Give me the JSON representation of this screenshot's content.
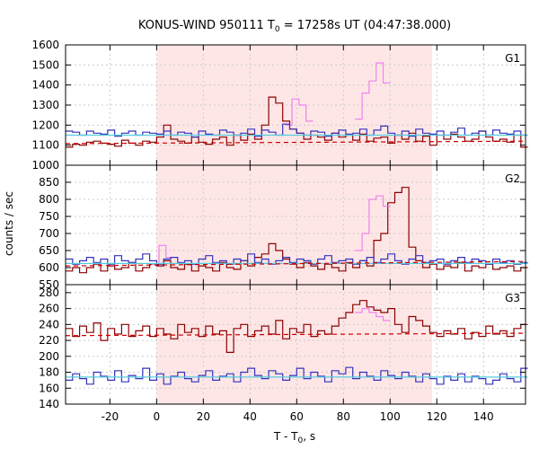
{
  "chart_data": [
    {
      "type": "line",
      "panel": "G1",
      "title": "KONUS-WIND 950111 T0 = 17258s UT (04:47:38.000)",
      "title_parts": {
        "pre": "KONUS-WIND 950111 T",
        "sub": "0",
        "post": " = 17258s UT (04:47:38.000)"
      },
      "xlabel": "T - T0, s",
      "xlabel_parts": {
        "pre": "T - T",
        "sub": "0",
        "post": ", s"
      },
      "ylabel": "counts / sec",
      "xlim": [
        -39,
        158
      ],
      "ylim": [
        1000,
        1600
      ],
      "yticks": [
        1000,
        1100,
        1200,
        1300,
        1400,
        1500,
        1600
      ],
      "xticks": [
        -20,
        0,
        20,
        40,
        60,
        80,
        100,
        120,
        140
      ],
      "shaded_interval": [
        0,
        118
      ],
      "bin_width": 3,
      "series": [
        {
          "color": "#8b0000",
          "start": -39,
          "values": [
            1090,
            1105,
            1100,
            1115,
            1120,
            1110,
            1105,
            1095,
            1125,
            1110,
            1100,
            1120,
            1115,
            1140,
            1200,
            1130,
            1120,
            1110,
            1140,
            1115,
            1105,
            1130,
            1140,
            1100,
            1150,
            1125,
            1155,
            1130,
            1200,
            1340,
            1310,
            1220,
            1180,
            1160,
            1130,
            1150,
            1140,
            1125,
            1160,
            1140,
            1150,
            1125,
            1155,
            1120,
            1135,
            1140,
            1110,
            1150,
            1130,
            1160,
            1120,
            1145,
            1100,
            1150,
            1130,
            1155,
            1140,
            1120,
            1130,
            1170,
            1140,
            1120,
            1130,
            1115,
            1150,
            1090
          ]
        },
        {
          "color": "#ee82ee",
          "start": 55,
          "values": [
            1200,
            1330,
            1300,
            1220
          ]
        },
        {
          "color": "#ee82ee",
          "start": 85,
          "values": [
            1230,
            1360,
            1420,
            1510,
            1410
          ]
        },
        {
          "color": "#3333bb",
          "start": -39,
          "values": [
            1170,
            1165,
            1150,
            1170,
            1160,
            1155,
            1175,
            1145,
            1160,
            1170,
            1150,
            1165,
            1160,
            1155,
            1170,
            1150,
            1165,
            1160,
            1140,
            1170,
            1155,
            1150,
            1175,
            1165,
            1150,
            1160,
            1180,
            1145,
            1175,
            1165,
            1150,
            1205,
            1180,
            1160,
            1150,
            1170,
            1165,
            1145,
            1160,
            1175,
            1155,
            1160,
            1180,
            1150,
            1175,
            1195,
            1160,
            1150,
            1170,
            1145,
            1180,
            1160,
            1155,
            1170,
            1150,
            1165,
            1185,
            1150,
            1160,
            1170,
            1150,
            1175,
            1160,
            1155,
            1170,
            1150
          ]
        },
        {
          "color": "#55ccdd",
          "start": -39,
          "values": [
            1150,
            1150,
            1150,
            1150,
            1150,
            1150,
            1150,
            1150,
            1150,
            1150,
            1150,
            1150,
            1150,
            1150,
            1150,
            1150,
            1150,
            1150,
            1150,
            1150,
            1150,
            1150,
            1150,
            1150,
            1150,
            1150,
            1150,
            1150,
            1150,
            1150,
            1150,
            1150,
            1150,
            1150,
            1150,
            1150,
            1150,
            1150,
            1150,
            1150,
            1150,
            1150,
            1150,
            1150,
            1150,
            1150,
            1150,
            1150,
            1150,
            1150,
            1150,
            1150,
            1150,
            1150,
            1150,
            1150,
            1150,
            1150,
            1150,
            1150,
            1150,
            1150,
            1150,
            1150,
            1150,
            1150
          ]
        }
      ],
      "background_fit": {
        "color": "#cc0000",
        "dash": true,
        "x": [
          -39,
          158
        ],
        "y": [
          1108,
          1120
        ]
      }
    },
    {
      "type": "line",
      "panel": "G2",
      "xlim": [
        -39,
        158
      ],
      "ylim": [
        550,
        900
      ],
      "yticks": [
        550,
        600,
        650,
        700,
        750,
        800,
        850
      ],
      "shaded_interval": [
        0,
        118
      ],
      "bin_width": 3,
      "series": [
        {
          "color": "#8b0000",
          "start": -39,
          "values": [
            590,
            600,
            585,
            600,
            610,
            590,
            605,
            595,
            600,
            615,
            590,
            600,
            610,
            605,
            620,
            600,
            595,
            610,
            590,
            605,
            600,
            590,
            615,
            600,
            595,
            620,
            605,
            630,
            640,
            670,
            650,
            625,
            610,
            600,
            615,
            605,
            595,
            610,
            600,
            590,
            615,
            600,
            620,
            605,
            680,
            700,
            790,
            820,
            835,
            660,
            620,
            600,
            610,
            595,
            605,
            600,
            615,
            590,
            605,
            600,
            610,
            595,
            600,
            605,
            590,
            600
          ]
        },
        {
          "color": "#ee82ee",
          "start": -2,
          "values": [
            610,
            665,
            630
          ]
        },
        {
          "color": "#ee82ee",
          "start": 85,
          "values": [
            650,
            700,
            800,
            810,
            780
          ]
        },
        {
          "color": "#3333bb",
          "start": -39,
          "values": [
            625,
            610,
            620,
            630,
            615,
            625,
            610,
            635,
            620,
            615,
            625,
            640,
            620,
            610,
            625,
            630,
            615,
            620,
            610,
            625,
            635,
            615,
            620,
            610,
            625,
            620,
            640,
            615,
            625,
            610,
            620,
            630,
            615,
            625,
            620,
            610,
            625,
            635,
            615,
            620,
            625,
            610,
            620,
            630,
            615,
            625,
            640,
            620,
            610,
            625,
            635,
            615,
            620,
            625,
            610,
            620,
            630,
            615,
            625,
            620,
            610,
            625,
            615,
            620,
            610,
            615
          ]
        },
        {
          "color": "#55ccdd",
          "start": -39,
          "values": [
            612,
            612,
            612,
            612,
            612,
            612,
            612,
            612,
            612,
            612,
            612,
            612,
            612,
            612,
            612,
            612,
            612,
            612,
            612,
            612,
            612,
            612,
            612,
            612,
            612,
            612,
            612,
            612,
            612,
            612,
            612,
            612,
            612,
            612,
            612,
            612,
            612,
            612,
            612,
            612,
            612,
            612,
            612,
            612,
            612,
            612,
            612,
            612,
            612,
            612,
            612,
            612,
            612,
            612,
            612,
            612,
            612,
            612,
            612,
            612,
            612,
            612,
            612,
            612,
            612,
            612
          ]
        }
      ],
      "background_fit": {
        "color": "#cc0000",
        "dash": true,
        "x": [
          -39,
          158
        ],
        "y": [
          605,
          618
        ]
      }
    },
    {
      "type": "line",
      "panel": "G3",
      "xlim": [
        -39,
        158
      ],
      "ylim": [
        140,
        290
      ],
      "yticks": [
        140,
        160,
        180,
        200,
        220,
        240,
        260,
        280
      ],
      "shaded_interval": [
        0,
        118
      ],
      "bin_width": 3,
      "series": [
        {
          "color": "#8b0000",
          "start": -39,
          "values": [
            235,
            225,
            238,
            230,
            242,
            220,
            235,
            228,
            240,
            225,
            232,
            238,
            225,
            235,
            228,
            222,
            240,
            230,
            235,
            225,
            238,
            228,
            232,
            205,
            235,
            240,
            225,
            232,
            238,
            228,
            245,
            222,
            235,
            230,
            240,
            225,
            232,
            228,
            238,
            248,
            255,
            265,
            270,
            262,
            258,
            255,
            260,
            240,
            230,
            250,
            245,
            238,
            230,
            225,
            232,
            228,
            235,
            222,
            230,
            225,
            238,
            228,
            232,
            225,
            235,
            240
          ]
        },
        {
          "color": "#ee82ee",
          "start": 85,
          "values": [
            255,
            260,
            255,
            250,
            245
          ]
        },
        {
          "color": "#3333bb",
          "start": -39,
          "values": [
            170,
            178,
            172,
            165,
            180,
            175,
            170,
            182,
            168,
            176,
            172,
            185,
            170,
            178,
            165,
            175,
            180,
            172,
            168,
            176,
            182,
            170,
            175,
            178,
            168,
            180,
            185,
            176,
            172,
            182,
            178,
            170,
            176,
            185,
            172,
            180,
            175,
            168,
            182,
            178,
            186,
            172,
            180,
            175,
            170,
            182,
            176,
            172,
            180,
            175,
            168,
            178,
            172,
            165,
            175,
            170,
            178,
            168,
            175,
            172,
            165,
            170,
            178,
            172,
            168,
            185
          ]
        },
        {
          "color": "#55ccdd",
          "start": -39,
          "values": [
            174,
            174,
            174,
            174,
            174,
            174,
            174,
            174,
            174,
            174,
            174,
            174,
            174,
            174,
            174,
            174,
            174,
            174,
            174,
            174,
            174,
            174,
            174,
            174,
            174,
            174,
            174,
            174,
            174,
            174,
            174,
            174,
            174,
            174,
            174,
            174,
            174,
            174,
            174,
            174,
            174,
            174,
            174,
            174,
            174,
            174,
            174,
            174,
            174,
            174,
            174,
            174,
            174,
            174,
            174,
            174,
            174,
            174,
            174,
            174,
            174,
            174,
            174,
            174,
            174,
            174
          ]
        }
      ],
      "background_fit": {
        "color": "#cc0000",
        "dash": true,
        "x": [
          -39,
          158
        ],
        "y": [
          226,
          229
        ]
      }
    }
  ],
  "colors": {
    "shade": "#ffe6e6",
    "grid": "#cccccc",
    "grid_dash": "2,3"
  }
}
